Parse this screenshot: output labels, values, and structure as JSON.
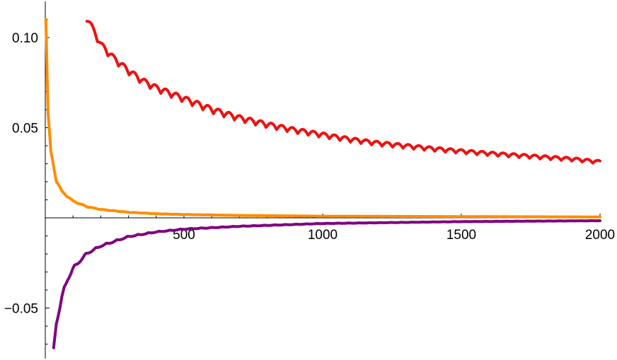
{
  "chart_data": {
    "type": "line",
    "title": "",
    "xlabel": "",
    "ylabel": "",
    "xlim": [
      0,
      2000
    ],
    "ylim": [
      -0.078,
      0.12
    ],
    "grid": false,
    "legend": "none",
    "x_ticks": [
      {
        "value": 500,
        "label": "500"
      },
      {
        "value": 1000,
        "label": "1000"
      },
      {
        "value": 1500,
        "label": "1500"
      },
      {
        "value": 2000,
        "label": "2000"
      }
    ],
    "y_ticks": [
      {
        "value": 0.1,
        "label": "0.10"
      },
      {
        "value": 0.05,
        "label": "0.05"
      },
      {
        "value": -0.05,
        "label": "−0.05"
      }
    ],
    "series": [
      {
        "color": "#ee1111",
        "x": [
          150,
          200,
          250,
          300,
          350,
          400,
          500,
          600,
          700,
          800,
          900,
          1000,
          1100,
          1200,
          1300,
          1400,
          1500,
          1600,
          1700,
          1800,
          1900,
          2000
        ],
        "y": [
          0.109,
          0.094,
          0.086,
          0.0795,
          0.074,
          0.07,
          0.064,
          0.058,
          0.0535,
          0.05,
          0.047,
          0.0445,
          0.042,
          0.04,
          0.0385,
          0.037,
          0.0357,
          0.0345,
          0.0335,
          0.0325,
          0.0315,
          0.03
        ]
      },
      {
        "color": "#ff8c00",
        "x": [
          2,
          10,
          20,
          40,
          60,
          100,
          150,
          200,
          300,
          400,
          500,
          700,
          1000,
          1500,
          2000
        ],
        "y": [
          0.11,
          0.056,
          0.035,
          0.02,
          0.014,
          0.009,
          0.006,
          0.0045,
          0.003,
          0.0022,
          0.0018,
          0.0013,
          0.0009,
          0.0007,
          0.0005
        ]
      },
      {
        "color": "#800080",
        "x": [
          30,
          40,
          60,
          80,
          100,
          150,
          200,
          300,
          400,
          500,
          700,
          1000,
          1500,
          2000
        ],
        "y": [
          -0.072,
          -0.056,
          -0.042,
          -0.033,
          -0.027,
          -0.019,
          -0.015,
          -0.01,
          -0.0075,
          -0.006,
          -0.0045,
          -0.003,
          -0.002,
          -0.0015
        ]
      }
    ]
  }
}
